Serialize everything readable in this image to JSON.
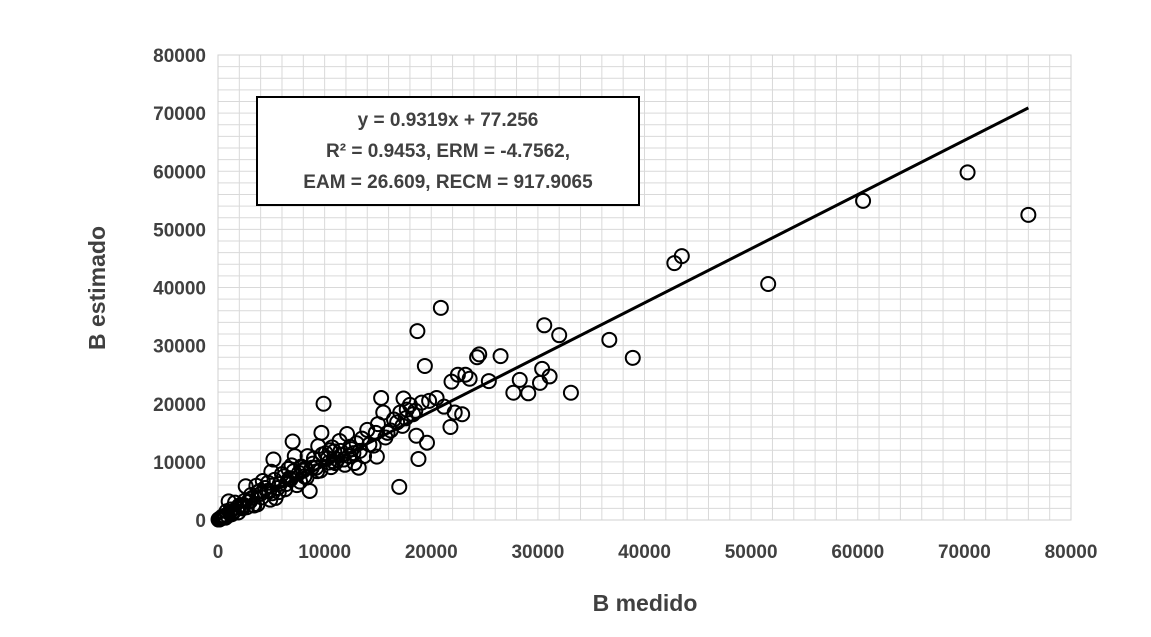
{
  "chart_data": {
    "type": "scatter",
    "title": "",
    "xlabel": "B medido",
    "ylabel": "B estimado",
    "xlim": [
      0,
      80000
    ],
    "ylim": [
      0,
      80000
    ],
    "x_ticks": [
      "0",
      "10000",
      "20000",
      "30000",
      "40000",
      "50000",
      "60000",
      "70000",
      "80000"
    ],
    "y_ticks": [
      "0",
      "10000",
      "20000",
      "30000",
      "40000",
      "50000",
      "60000",
      "70000",
      "80000"
    ],
    "grid": "on",
    "marker": "open-circle",
    "marker_color": "#000000",
    "grid_color": "#d9d9d9",
    "text_color": "#404040",
    "annotation": {
      "line1": "y = 0.9319x + 77.256",
      "line2": "R² = 0.9453, ERM = -4.7562,",
      "line3": "EAM = 26.609, RECM = 917.9065"
    },
    "trendline": {
      "slope": 0.9319,
      "intercept": 77.256,
      "x_range": [
        0,
        76000
      ]
    },
    "points": {
      "x": [
        76000,
        70300,
        60500,
        51600,
        43500,
        42800,
        38900,
        36700,
        33100,
        32000,
        31100,
        30600,
        30400,
        30200,
        29100,
        28300,
        27700,
        26500,
        25400,
        24500,
        24300,
        23600,
        23200,
        22900,
        22500,
        22200,
        21800,
        21900,
        21200,
        20900,
        20500,
        19800,
        19600,
        19400,
        19100,
        18800,
        18700,
        18600,
        18500,
        18300,
        18000,
        17600,
        17400,
        17100,
        17000,
        17300,
        16200,
        15500,
        15300,
        15000,
        14800,
        14600,
        14200,
        14000,
        13700,
        13500,
        13200,
        13000,
        12700,
        12500,
        12300,
        12100,
        11900,
        11600,
        11400,
        11200,
        11000,
        10900,
        10700,
        10500,
        10300,
        10100,
        9900,
        9700,
        9600,
        9400,
        9200,
        9000,
        8800,
        8600,
        8400,
        8200,
        8000,
        7800,
        7600,
        7400,
        7200,
        7000,
        6800,
        6600,
        6400,
        6200,
        6000,
        5800,
        5600,
        5400,
        5200,
        5000,
        4800,
        4600,
        4400,
        4200,
        4000,
        3800,
        3600,
        3400,
        3200,
        3000,
        2800,
        2600,
        2400,
        2200,
        2000,
        1800,
        1600,
        1400,
        1200,
        1000,
        800,
        600,
        400,
        300,
        200,
        100,
        50,
        9800,
        8900,
        7100,
        6900,
        5300,
        4700,
        3900,
        3100,
        2500,
        1500,
        14900,
        12800,
        11500,
        10400,
        8300,
        6300,
        4900,
        3300,
        1900,
        900,
        13300,
        12400,
        10800,
        9300,
        7700,
        5700,
        4100,
        2700,
        1300,
        700,
        11800,
        10600,
        8100,
        6700,
        5100,
        3700,
        2300,
        1100,
        500,
        150,
        17700,
        16500,
        15700,
        16800,
        15900
      ],
      "y": [
        52500,
        59800,
        54900,
        40600,
        45400,
        44200,
        27900,
        31000,
        21900,
        31800,
        24700,
        33500,
        26000,
        23600,
        21800,
        24100,
        21900,
        28200,
        23900,
        28500,
        28000,
        24300,
        25000,
        18200,
        25000,
        18500,
        16000,
        23800,
        19500,
        36500,
        21000,
        20500,
        13300,
        26500,
        20200,
        10500,
        32500,
        14500,
        18800,
        18200,
        19800,
        17500,
        20900,
        18500,
        5700,
        16200,
        15400,
        18500,
        21000,
        16500,
        15000,
        12800,
        13000,
        15500,
        11000,
        14000,
        9000,
        13200,
        11500,
        12200,
        11000,
        14800,
        9500,
        11200,
        13600,
        10400,
        9800,
        11800,
        12500,
        12000,
        10600,
        11500,
        20000,
        15000,
        8500,
        12700,
        9000,
        10600,
        9000,
        5000,
        11000,
        8900,
        8500,
        9200,
        8100,
        6000,
        11000,
        13500,
        7000,
        8800,
        6200,
        7500,
        7900,
        6200,
        5500,
        3800,
        10400,
        8300,
        4900,
        5000,
        5500,
        6700,
        4500,
        4800,
        5900,
        2500,
        3800,
        3200,
        3100,
        5800,
        2600,
        2200,
        2500,
        2100,
        3000,
        1400,
        1800,
        3200,
        1500,
        700,
        600,
        400,
        250,
        150,
        80,
        11300,
        9700,
        8400,
        9400,
        6900,
        6400,
        5000,
        4300,
        3300,
        1500,
        10900,
        9800,
        11900,
        9900,
        7300,
        5300,
        3500,
        2600,
        1300,
        700,
        11900,
        12600,
        10100,
        8400,
        6600,
        4800,
        3900,
        2200,
        1000,
        400,
        10400,
        9100,
        7500,
        7200,
        4600,
        2700,
        2000,
        1300,
        400,
        100,
        19000,
        17300,
        14200,
        16800,
        15000
      ]
    }
  }
}
